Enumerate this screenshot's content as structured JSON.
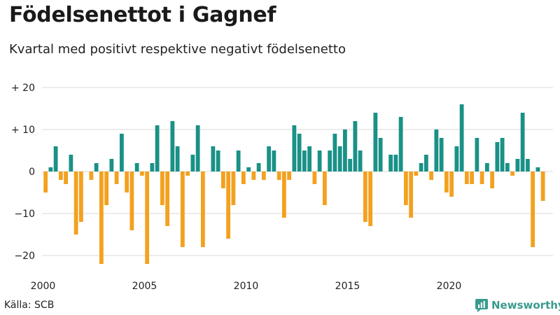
{
  "title": "Födelsenettot i Gagnef",
  "subtitle": "Kvartal med positivt respektive negativt födelsenetto",
  "source": "Källa: SCB",
  "brand": {
    "name": "Newsworthy",
    "icon": "bar-chart-icon"
  },
  "colors": {
    "positive": "#1a9187",
    "negative": "#f3a11f",
    "grid": "#d9d9d9",
    "brand": "#3a9b8d"
  },
  "chart_data": {
    "type": "bar",
    "title": "Födelsenettot i Gagnef",
    "subtitle": "Kvartal med positivt respektive negativt födelsenetto",
    "xlabel": "",
    "ylabel": "",
    "x_start": 2000,
    "periods_per_year": 4,
    "ylim": [
      -24,
      22
    ],
    "y_ticks": [
      20,
      10,
      0,
      -10,
      -20
    ],
    "y_tick_labels": [
      "+ 20",
      "+ 10",
      "0",
      "−10",
      "−20"
    ],
    "x_ticks": [
      2000,
      2005,
      2010,
      2015,
      2020
    ],
    "x_tick_labels": [
      "2000",
      "2005",
      "2010",
      "2015",
      "2020"
    ],
    "grid": true,
    "values": [
      -5,
      1,
      6,
      -2,
      -3,
      4,
      -15,
      -12,
      0,
      -2,
      2,
      -22,
      -8,
      3,
      -3,
      9,
      -5,
      -14,
      2,
      -1,
      -22,
      2,
      11,
      -8,
      -13,
      12,
      6,
      -18,
      -1,
      4,
      11,
      -18,
      0,
      6,
      5,
      -4,
      -16,
      -8,
      5,
      -3,
      1,
      -2,
      2,
      -2,
      6,
      5,
      -2,
      -11,
      -2,
      11,
      9,
      5,
      6,
      -3,
      5,
      -8,
      5,
      9,
      6,
      10,
      3,
      12,
      5,
      -12,
      -13,
      14,
      8,
      0,
      4,
      4,
      13,
      -8,
      -11,
      -1,
      2,
      4,
      -2,
      10,
      8,
      -5,
      -6,
      6,
      16,
      -3,
      -3,
      8,
      -3,
      2,
      -4,
      7,
      8,
      2,
      -1,
      3,
      14,
      3,
      -18,
      1,
      -7
    ]
  }
}
